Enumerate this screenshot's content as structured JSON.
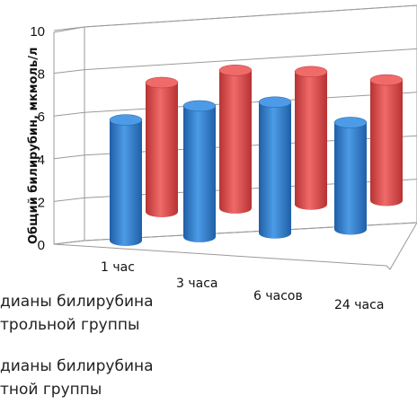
{
  "chart_data": {
    "type": "bar",
    "three_d": true,
    "ylabel": "Общий билирубин, мкмоль/л",
    "xlabel": "",
    "ylim": [
      0,
      10
    ],
    "yticks": [
      0,
      2,
      4,
      6,
      8,
      10
    ],
    "grid": true,
    "categories": [
      "1 час",
      "3 часа",
      "6 часов",
      "24 часа"
    ],
    "series": [
      {
        "name": "…диан ы билирубина …трольной группы",
        "color": "#2f7fd0",
        "values": [
          7.0,
          7.6,
          7.6,
          6.2
        ]
      },
      {
        "name": "…дианы билирубина …тной группы",
        "color": "#e04848",
        "values": [
          7.5,
          8.0,
          7.7,
          7.0
        ]
      }
    ],
    "legend": {
      "placement": "bottom-left",
      "lines": [
        "дианы билирубина",
        "трольной группы",
        "дианы билирубина",
        "тной группы"
      ]
    }
  }
}
